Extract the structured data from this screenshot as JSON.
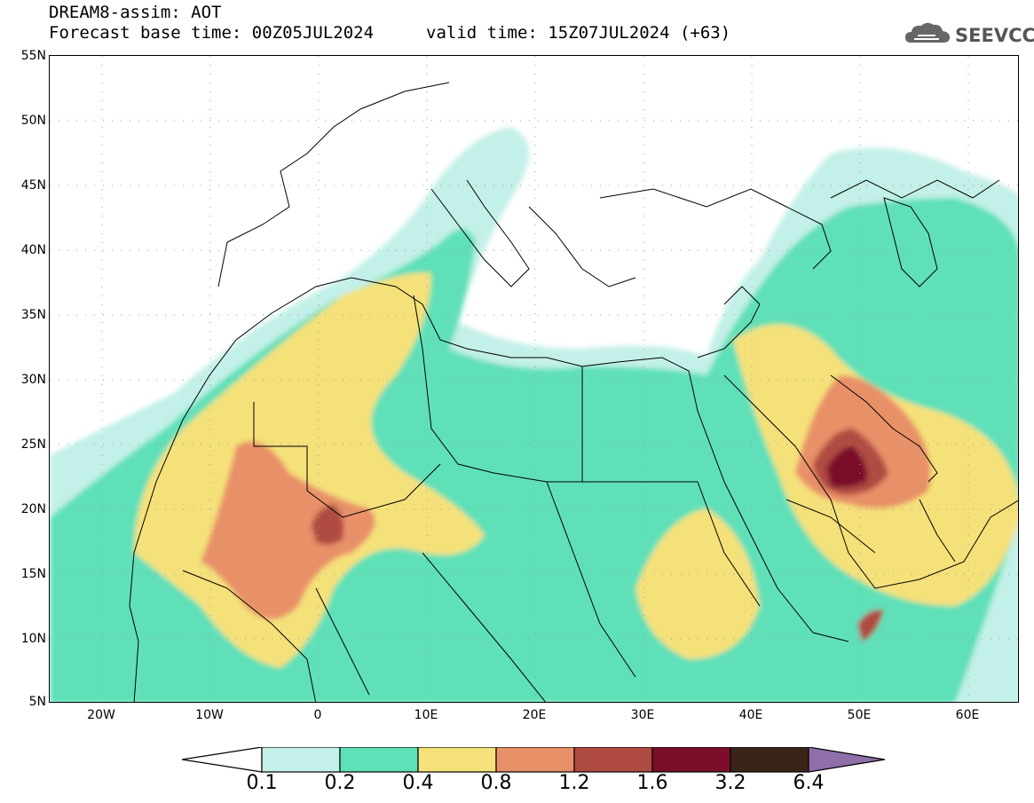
{
  "header": {
    "line1": "DREAM8-assim: AOT",
    "line2": "Forecast base time: 00Z05JUL2024",
    "line2b": "valid time: 15Z07JUL2024 (+63)",
    "logo_text": "SEEVCCC",
    "logo_icon": "cloud-icon"
  },
  "map": {
    "lat_labels": [
      "55N",
      "50N",
      "45N",
      "40N",
      "35N",
      "30N",
      "25N",
      "20N",
      "15N",
      "10N",
      "5N"
    ],
    "lon_labels": [
      "20W",
      "10W",
      "0",
      "10E",
      "20E",
      "30E",
      "40E",
      "50E",
      "60E"
    ]
  },
  "colorbar": {
    "labels": [
      "0.1",
      "0.2",
      "0.4",
      "0.8",
      "1.2",
      "1.6",
      "3.2",
      "6.4"
    ],
    "colors": {
      "below": "#ffffff",
      "c1": "#c3f0e8",
      "c2": "#5ee0b8",
      "c3": "#f5e17a",
      "c4": "#e89068",
      "c5": "#b04b42",
      "c6": "#7c0e2a",
      "c7": "#3b2417",
      "above": "#8e6fa8"
    }
  }
}
